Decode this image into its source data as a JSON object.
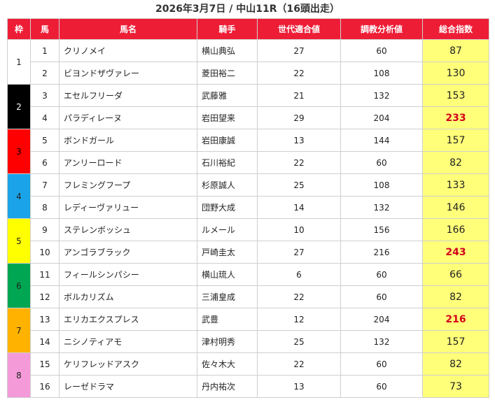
{
  "title": "2026年3月7日 / 中山11R（16頭出走）",
  "headers": [
    "枠",
    "馬",
    "馬名",
    "騎手",
    "世代適合値",
    "調教分析値",
    "総合指数"
  ],
  "waku": [
    {
      "label": "1",
      "bg": "#ffffff",
      "fg": "#222222"
    },
    {
      "label": "2",
      "bg": "#000000",
      "fg": "#ffffff"
    },
    {
      "label": "3",
      "bg": "#ff0000",
      "fg": "#000000"
    },
    {
      "label": "4",
      "bg": "#1aa3e8",
      "fg": "#222222"
    },
    {
      "label": "5",
      "bg": "#ffff00",
      "fg": "#222222"
    },
    {
      "label": "6",
      "bg": "#00a651",
      "fg": "#222222"
    },
    {
      "label": "7",
      "bg": "#ffb300",
      "fg": "#222222"
    },
    {
      "label": "8",
      "bg": "#f59ad8",
      "fg": "#222222"
    }
  ],
  "rows": [
    {
      "num": "1",
      "name": "クリノメイ",
      "jockey": "横山典弘",
      "gen": "27",
      "train": "60",
      "score": "87",
      "highlight": false
    },
    {
      "num": "2",
      "name": "ビヨンドザヴァレー",
      "jockey": "菱田裕二",
      "gen": "22",
      "train": "108",
      "score": "130",
      "highlight": false
    },
    {
      "num": "3",
      "name": "エセルフリーダ",
      "jockey": "武藤雅",
      "gen": "21",
      "train": "132",
      "score": "153",
      "highlight": false
    },
    {
      "num": "4",
      "name": "パラディレーヌ",
      "jockey": "岩田望来",
      "gen": "29",
      "train": "204",
      "score": "233",
      "highlight": true
    },
    {
      "num": "5",
      "name": "ボンドガール",
      "jockey": "岩田康誠",
      "gen": "13",
      "train": "144",
      "score": "157",
      "highlight": false
    },
    {
      "num": "6",
      "name": "アンリーロード",
      "jockey": "石川裕紀",
      "gen": "22",
      "train": "60",
      "score": "82",
      "highlight": false
    },
    {
      "num": "7",
      "name": "フレミングフープ",
      "jockey": "杉原誠人",
      "gen": "25",
      "train": "108",
      "score": "133",
      "highlight": false
    },
    {
      "num": "8",
      "name": "レディーヴァリュー",
      "jockey": "団野大成",
      "gen": "14",
      "train": "132",
      "score": "146",
      "highlight": false
    },
    {
      "num": "9",
      "name": "ステレンボッシュ",
      "jockey": "ルメール",
      "gen": "10",
      "train": "156",
      "score": "166",
      "highlight": false
    },
    {
      "num": "10",
      "name": "アンゴラブラック",
      "jockey": "戸崎圭太",
      "gen": "27",
      "train": "216",
      "score": "243",
      "highlight": true
    },
    {
      "num": "11",
      "name": "フィールシンパシー",
      "jockey": "横山琉人",
      "gen": "6",
      "train": "60",
      "score": "66",
      "highlight": false
    },
    {
      "num": "12",
      "name": "ボルカリズム",
      "jockey": "三浦皇成",
      "gen": "22",
      "train": "60",
      "score": "82",
      "highlight": false
    },
    {
      "num": "13",
      "name": "エリカエクスプレス",
      "jockey": "武豊",
      "gen": "12",
      "train": "204",
      "score": "216",
      "highlight": true
    },
    {
      "num": "14",
      "name": "ニシノティアモ",
      "jockey": "津村明秀",
      "gen": "25",
      "train": "132",
      "score": "157",
      "highlight": false
    },
    {
      "num": "15",
      "name": "ケリフレッドアスク",
      "jockey": "佐々木大",
      "gen": "22",
      "train": "60",
      "score": "82",
      "highlight": false
    },
    {
      "num": "16",
      "name": "レーゼドラマ",
      "jockey": "丹内祐次",
      "gen": "13",
      "train": "60",
      "score": "73",
      "highlight": false
    }
  ]
}
